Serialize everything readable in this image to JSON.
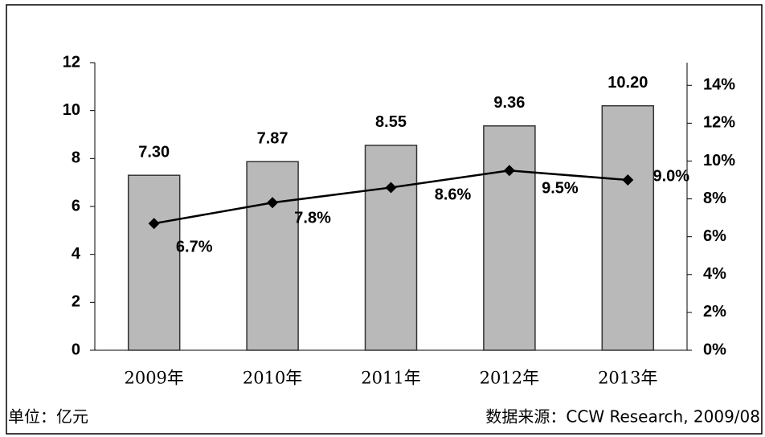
{
  "chart_data": {
    "type": "bar",
    "categories": [
      "2009年",
      "2010年",
      "2011年",
      "2012年",
      "2013年"
    ],
    "series": [
      {
        "type": "bar",
        "color": "#b9b9b9",
        "values": [
          7.3,
          7.87,
          8.55,
          9.36,
          10.2
        ],
        "value_labels": [
          "7.30",
          "7.87",
          "8.55",
          "9.36",
          "10.20"
        ]
      },
      {
        "type": "line",
        "axis": "y2",
        "color": "#000000",
        "values": [
          6.7,
          7.8,
          8.6,
          9.5,
          9.0
        ],
        "value_labels": [
          "6.7%",
          "7.8%",
          "8.6%",
          "9.5%",
          "9.0%"
        ]
      }
    ],
    "ylim": [
      0,
      12
    ],
    "yticks": [
      0,
      2,
      4,
      6,
      8,
      10,
      12
    ],
    "y2lim": [
      0,
      15.2
    ],
    "y2ticks": [
      {
        "value": 0,
        "label": "0%"
      },
      {
        "value": 2,
        "label": "2%"
      },
      {
        "value": 4,
        "label": "4%"
      },
      {
        "value": 6,
        "label": "6%"
      },
      {
        "value": 8,
        "label": "8%"
      },
      {
        "value": 10,
        "label": "10%"
      },
      {
        "value": 12,
        "label": "12%"
      },
      {
        "value": 14,
        "label": "14%"
      }
    ],
    "unit_note": "单位：亿元",
    "source": "数据来源：CCW Research, 2009/08"
  }
}
